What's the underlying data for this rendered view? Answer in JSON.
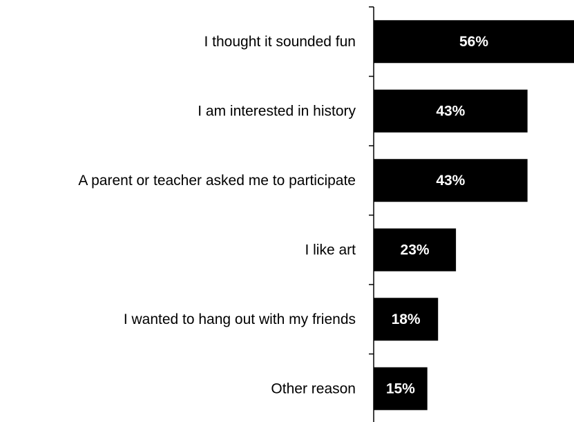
{
  "chart_data": {
    "type": "bar",
    "orientation": "horizontal",
    "categories": [
      "I thought it sounded fun",
      "I am interested in history",
      "A parent or teacher asked me to participate",
      "I like art",
      "I wanted to hang out with my friends",
      "Other reason"
    ],
    "values": [
      56,
      43,
      43,
      23,
      18,
      15
    ],
    "value_labels": [
      "56%",
      "43%",
      "43%",
      "23%",
      "18%",
      "15%"
    ],
    "unit": "%",
    "title": "",
    "xlabel": "",
    "ylabel": "",
    "xlim": [
      0,
      56
    ],
    "grid": false,
    "legend": "none",
    "colors": {
      "bar": "#000000",
      "value_text": "#ffffff",
      "category_text": "#000000",
      "axis": "#000000"
    }
  }
}
